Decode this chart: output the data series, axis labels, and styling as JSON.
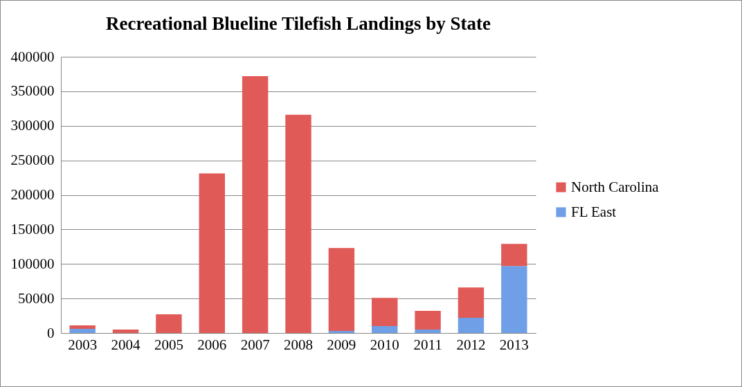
{
  "chart_data": {
    "type": "bar",
    "title": "Recreational Blueline Tilefish Landings by State",
    "categories": [
      "2003",
      "2004",
      "2005",
      "2006",
      "2007",
      "2008",
      "2009",
      "2010",
      "2011",
      "2012",
      "2013"
    ],
    "series": [
      {
        "name": "FL East",
        "color": "#6f9fe6",
        "values": [
          6000,
          0,
          0,
          0,
          0,
          0,
          3000,
          10000,
          5000,
          22000,
          97000
        ]
      },
      {
        "name": "North Carolina",
        "color": "#e05a57",
        "values": [
          5000,
          5000,
          27000,
          231000,
          372000,
          316000,
          120000,
          41000,
          27000,
          44000,
          32000
        ]
      }
    ],
    "stacked": true,
    "ylim": [
      0,
      400000
    ],
    "yticks": [
      0,
      50000,
      100000,
      150000,
      200000,
      250000,
      300000,
      350000,
      400000
    ],
    "grid": "y",
    "legend": "right"
  }
}
